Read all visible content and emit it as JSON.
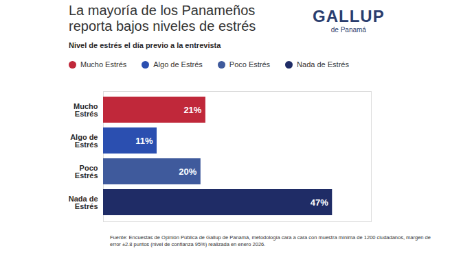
{
  "chart_data": {
    "type": "bar",
    "orientation": "horizontal",
    "title": "La mayoría de los Panameños reporta bajos niveles de estrés",
    "subtitle": "Nivel de estrés el día previo a la entrevista",
    "logo": [
      "GALLUP",
      "de Panamá"
    ],
    "source": "Fuente: Encuestas de Opinión Pública de Gallup de Panamá, metodología cara a cara con muestra mínima de 1200 ciudadanos, margen de error ±2.8 puntos (nivel de confianza 95%) realizada en enero 2026.",
    "categories": [
      "Mucho Estrés",
      "Algo de Estrés",
      "Poco Estrés",
      "Nada de Estrés"
    ],
    "values": [
      21,
      11,
      20,
      47
    ],
    "value_labels": [
      "21%",
      "11%",
      "20%",
      "47%"
    ],
    "colors": [
      "#c0283a",
      "#2b4fb0",
      "#3f5a9c",
      "#1f2c66"
    ],
    "xlim": [
      0,
      55
    ],
    "xticks": [],
    "data_labels": true,
    "tick_labels": "y",
    "legend": "top",
    "grid": false
  }
}
